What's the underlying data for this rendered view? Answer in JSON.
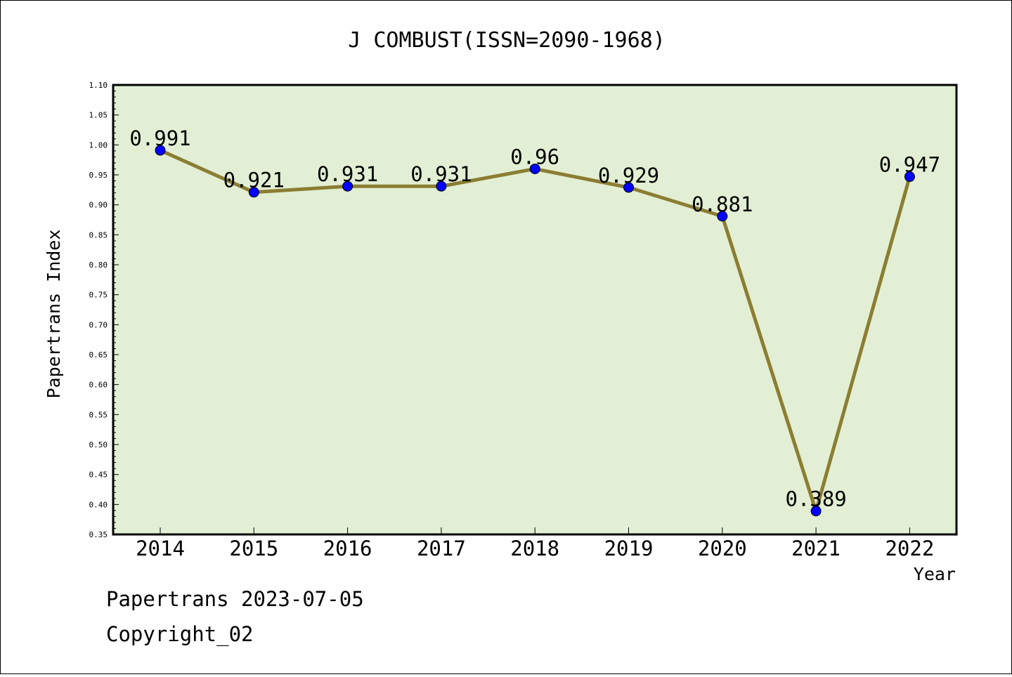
{
  "chart_data": {
    "type": "line",
    "title": "J COMBUST(ISSN=2090-1968)",
    "xlabel": "Year",
    "ylabel": "Papertrans Index",
    "categories": [
      "2014",
      "2015",
      "2016",
      "2017",
      "2018",
      "2019",
      "2020",
      "2021",
      "2022"
    ],
    "values": [
      0.991,
      0.921,
      0.931,
      0.931,
      0.96,
      0.929,
      0.881,
      0.389,
      0.947
    ],
    "data_labels": [
      "0.991",
      "0.921",
      "0.931",
      "0.931",
      "0.96",
      "0.929",
      "0.881",
      "0.389",
      "0.947"
    ],
    "ylim": [
      0.35,
      1.1
    ],
    "yticks": [
      "0.35",
      "0.40",
      "0.45",
      "0.50",
      "0.55",
      "0.60",
      "0.65",
      "0.70",
      "0.75",
      "0.80",
      "0.85",
      "0.90",
      "0.95",
      "1.00",
      "1.05",
      "1.10"
    ],
    "grid": false,
    "colors": {
      "plot_background": "#e2efd4",
      "line": "#8b7d32",
      "marker": "#0000ff",
      "axis": "#000000"
    }
  },
  "footer": {
    "line1": "Papertrans 2023-07-05",
    "line2": "Copyright_02"
  }
}
